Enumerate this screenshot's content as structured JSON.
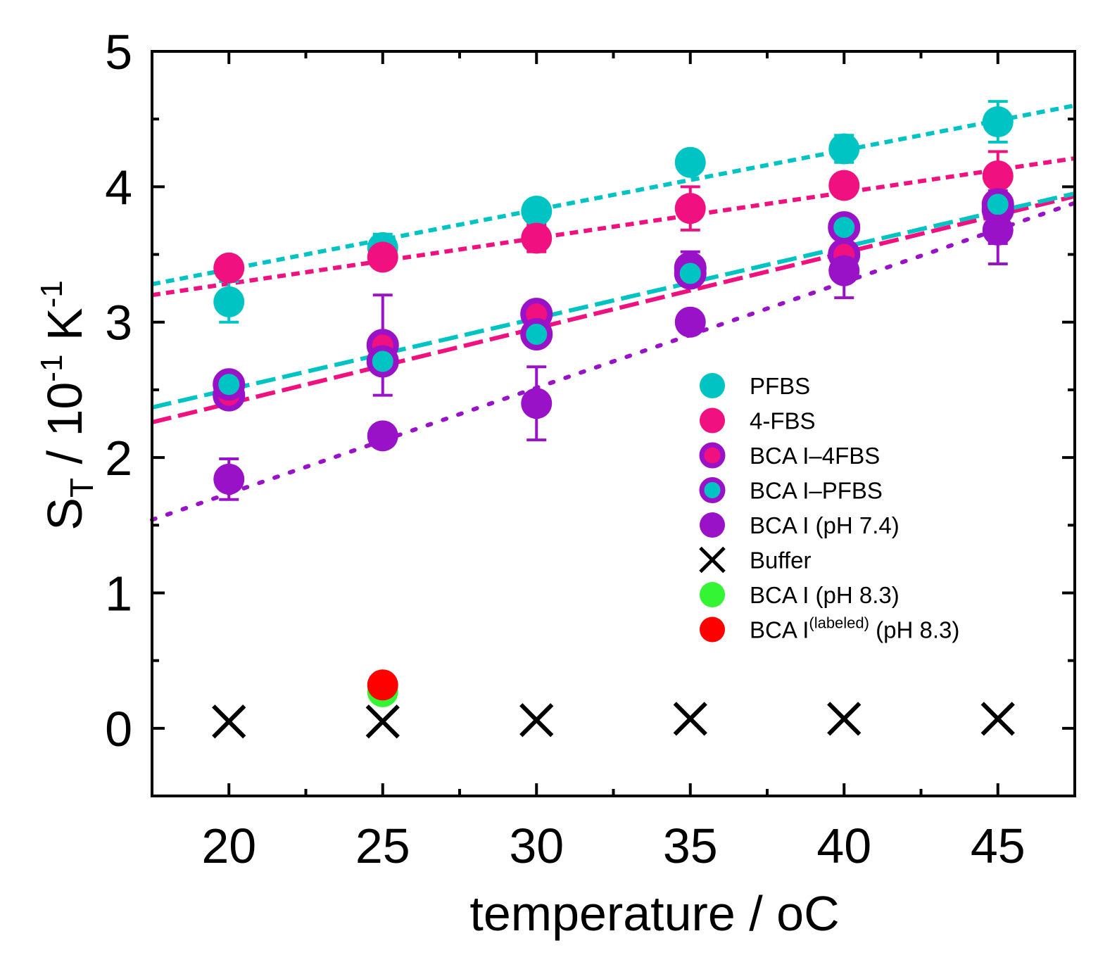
{
  "chart_data": {
    "type": "scatter",
    "xlabel": "temperature / ",
    "xlabel_unit": "oC",
    "ylabel": "S",
    "ylabel_sub": "T",
    "ylabel_rest": " / 10",
    "ylabel_exp1": "-1",
    "ylabel_k": " K",
    "ylabel_exp2": "-1",
    "xlim": [
      17.5,
      47.5
    ],
    "ylim": [
      -0.5,
      5
    ],
    "x_ticks": [
      20,
      25,
      30,
      35,
      40,
      45
    ],
    "y_ticks": [
      0,
      1,
      2,
      3,
      4,
      5
    ],
    "legend_position": "center-right",
    "series": [
      {
        "name": "PFBS",
        "marker": "filled-circle",
        "color": "#00c4c4",
        "x": [
          20,
          25,
          30,
          35,
          40,
          45
        ],
        "y": [
          3.15,
          3.55,
          3.82,
          4.18,
          4.28,
          4.48
        ],
        "err": [
          0.15,
          0.1,
          0.08,
          0.06,
          0.1,
          0.15
        ],
        "fit": {
          "style": "short-dash",
          "x": [
            17.5,
            47.5
          ],
          "y": [
            3.28,
            4.6
          ]
        }
      },
      {
        "name": "4-FBS",
        "marker": "filled-circle",
        "color": "#f0107f",
        "x": [
          20,
          25,
          30,
          35,
          40,
          45
        ],
        "y": [
          3.4,
          3.48,
          3.62,
          3.84,
          4.01,
          4.08
        ],
        "err": [
          0.05,
          0.08,
          0.1,
          0.16,
          0.08,
          0.18
        ],
        "fit": {
          "style": "short-dash",
          "x": [
            17.5,
            47.5
          ],
          "y": [
            3.2,
            4.21
          ]
        }
      },
      {
        "name": "BCA I–4FBS",
        "marker": "ring",
        "color": "#f0107f",
        "ring_color": "#9a12c8",
        "x": [
          20,
          25,
          30,
          35,
          40,
          45
        ],
        "y": [
          2.46,
          2.83,
          3.06,
          3.4,
          3.5,
          3.83
        ],
        "err": [
          0.05,
          0.37,
          0.05,
          0.12,
          0.12,
          0.25
        ],
        "fit": {
          "style": "long-dash",
          "x": [
            17.5,
            47.5
          ],
          "y": [
            2.26,
            3.93
          ]
        }
      },
      {
        "name": "BCA I–PFBS",
        "marker": "ring",
        "color": "#00c4c4",
        "ring_color": "#9a12c8",
        "x": [
          20,
          25,
          30,
          35,
          40,
          45
        ],
        "y": [
          2.54,
          2.71,
          2.91,
          3.36,
          3.7,
          3.87
        ],
        "err": [
          0.05,
          0.08,
          0.05,
          0.08,
          0.05,
          0.1
        ],
        "fit": {
          "style": "long-dash",
          "x": [
            17.5,
            47.5
          ],
          "y": [
            2.37,
            3.95
          ]
        }
      },
      {
        "name": "BCA I (pH 7.4)",
        "marker": "filled-circle",
        "color": "#9a12c8",
        "x": [
          20,
          25,
          30,
          35,
          40,
          45
        ],
        "y": [
          1.84,
          2.16,
          2.4,
          3.0,
          3.38,
          3.68
        ],
        "err": [
          0.15,
          0.05,
          0.27,
          0.05,
          0.2,
          0.25
        ],
        "fit": {
          "style": "dotted",
          "x": [
            17.5,
            47.5
          ],
          "y": [
            1.54,
            3.88
          ]
        }
      },
      {
        "name": "Buffer",
        "marker": "x",
        "color": "#000000",
        "x": [
          20,
          25,
          30,
          35,
          40,
          45
        ],
        "y": [
          0.05,
          0.05,
          0.06,
          0.07,
          0.07,
          0.07
        ],
        "err": [
          0,
          0,
          0,
          0,
          0,
          0
        ]
      },
      {
        "name": "BCA I (pH 8.3)",
        "marker": "filled-circle",
        "color": "#33f533",
        "x": [
          25
        ],
        "y": [
          0.27
        ],
        "err": [
          0.03
        ]
      },
      {
        "name": "BCA I",
        "name_sup": "(labeled)",
        "name_tail": " (pH 8.3)",
        "marker": "filled-circle",
        "color": "#ff0000",
        "x": [
          25
        ],
        "y": [
          0.32
        ],
        "err": [
          0.02
        ]
      }
    ]
  }
}
